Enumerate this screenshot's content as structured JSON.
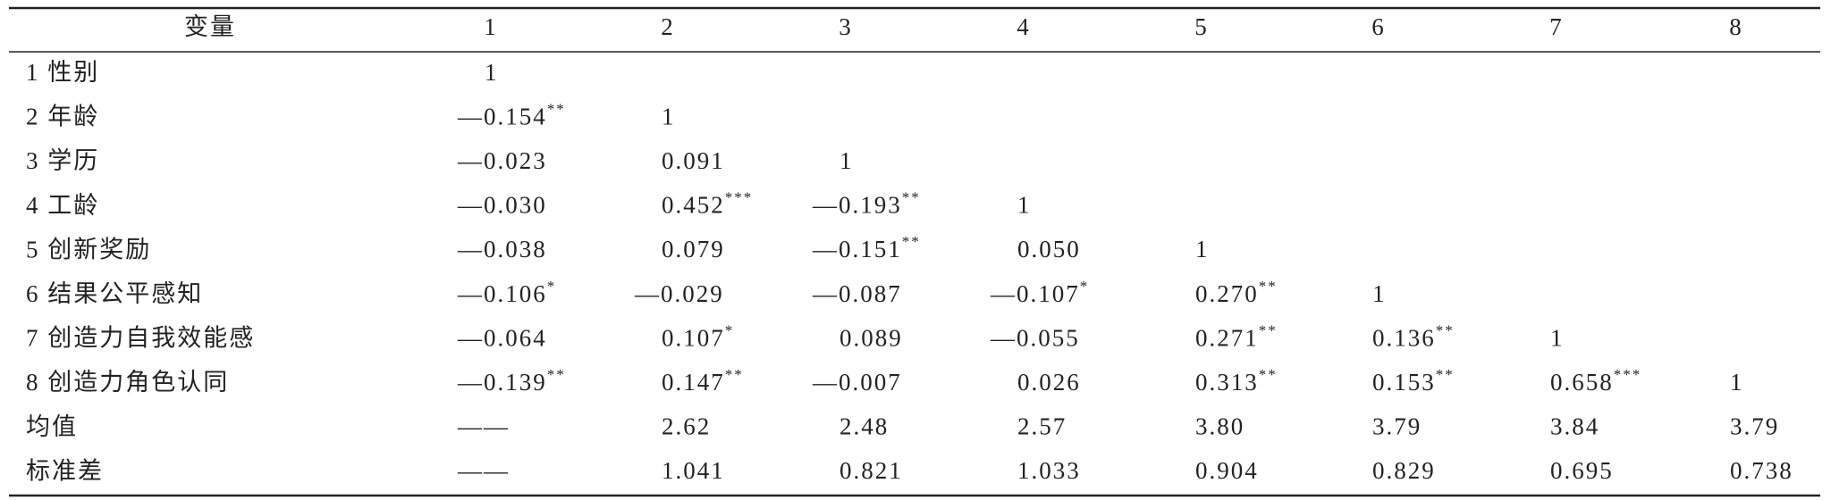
{
  "table": {
    "header": [
      "变量",
      "1",
      "2",
      "3",
      "4",
      "5",
      "6",
      "7",
      "8"
    ],
    "rows": [
      {
        "label": "1 性别",
        "cells": [
          {
            "text": "1"
          }
        ]
      },
      {
        "label": "2 年龄",
        "cells": [
          {
            "text": "—0.154",
            "sup": "**"
          },
          {
            "text": "1"
          }
        ]
      },
      {
        "label": "3 学历",
        "cells": [
          {
            "text": "—0.023"
          },
          {
            "text": "0.091"
          },
          {
            "text": "1"
          }
        ]
      },
      {
        "label": "4 工龄",
        "cells": [
          {
            "text": "—0.030"
          },
          {
            "text": "0.452",
            "sup": "***"
          },
          {
            "text": "—0.193",
            "sup": "**"
          },
          {
            "text": "1"
          }
        ]
      },
      {
        "label": "5 创新奖励",
        "cells": [
          {
            "text": "—0.038"
          },
          {
            "text": "0.079"
          },
          {
            "text": "—0.151",
            "sup": "**"
          },
          {
            "text": "0.050"
          },
          {
            "text": "1"
          }
        ]
      },
      {
        "label": "6 结果公平感知",
        "cells": [
          {
            "text": "—0.106",
            "sup": "*"
          },
          {
            "text": "—0.029"
          },
          {
            "text": "—0.087"
          },
          {
            "text": "—0.107",
            "sup": "*"
          },
          {
            "text": "0.270",
            "sup": "**"
          },
          {
            "text": "1"
          }
        ]
      },
      {
        "label": "7 创造力自我效能感",
        "cells": [
          {
            "text": "—0.064"
          },
          {
            "text": "0.107",
            "sup": "*"
          },
          {
            "text": "0.089"
          },
          {
            "text": "—0.055"
          },
          {
            "text": "0.271",
            "sup": "**"
          },
          {
            "text": "0.136",
            "sup": "**"
          },
          {
            "text": "1"
          }
        ]
      },
      {
        "label": "8 创造力角色认同",
        "cells": [
          {
            "text": "—0.139",
            "sup": "**"
          },
          {
            "text": "0.147",
            "sup": "**"
          },
          {
            "text": "—0.007"
          },
          {
            "text": "0.026"
          },
          {
            "text": "0.313",
            "sup": "**"
          },
          {
            "text": "0.153",
            "sup": "**"
          },
          {
            "text": "0.658",
            "sup": "***"
          },
          {
            "text": "1"
          }
        ]
      },
      {
        "label": "均值",
        "cells": [
          {
            "text": "——"
          },
          {
            "text": "2.62"
          },
          {
            "text": "2.48"
          },
          {
            "text": "2.57"
          },
          {
            "text": "3.80"
          },
          {
            "text": "3.79"
          },
          {
            "text": "3.84"
          },
          {
            "text": "3.79"
          }
        ]
      },
      {
        "label": "标准差",
        "cells": [
          {
            "text": "——"
          },
          {
            "text": "1.041"
          },
          {
            "text": "0.821"
          },
          {
            "text": "1.033"
          },
          {
            "text": "0.904"
          },
          {
            "text": "0.829"
          },
          {
            "text": "0.695"
          },
          {
            "text": "0.738"
          }
        ]
      }
    ]
  }
}
